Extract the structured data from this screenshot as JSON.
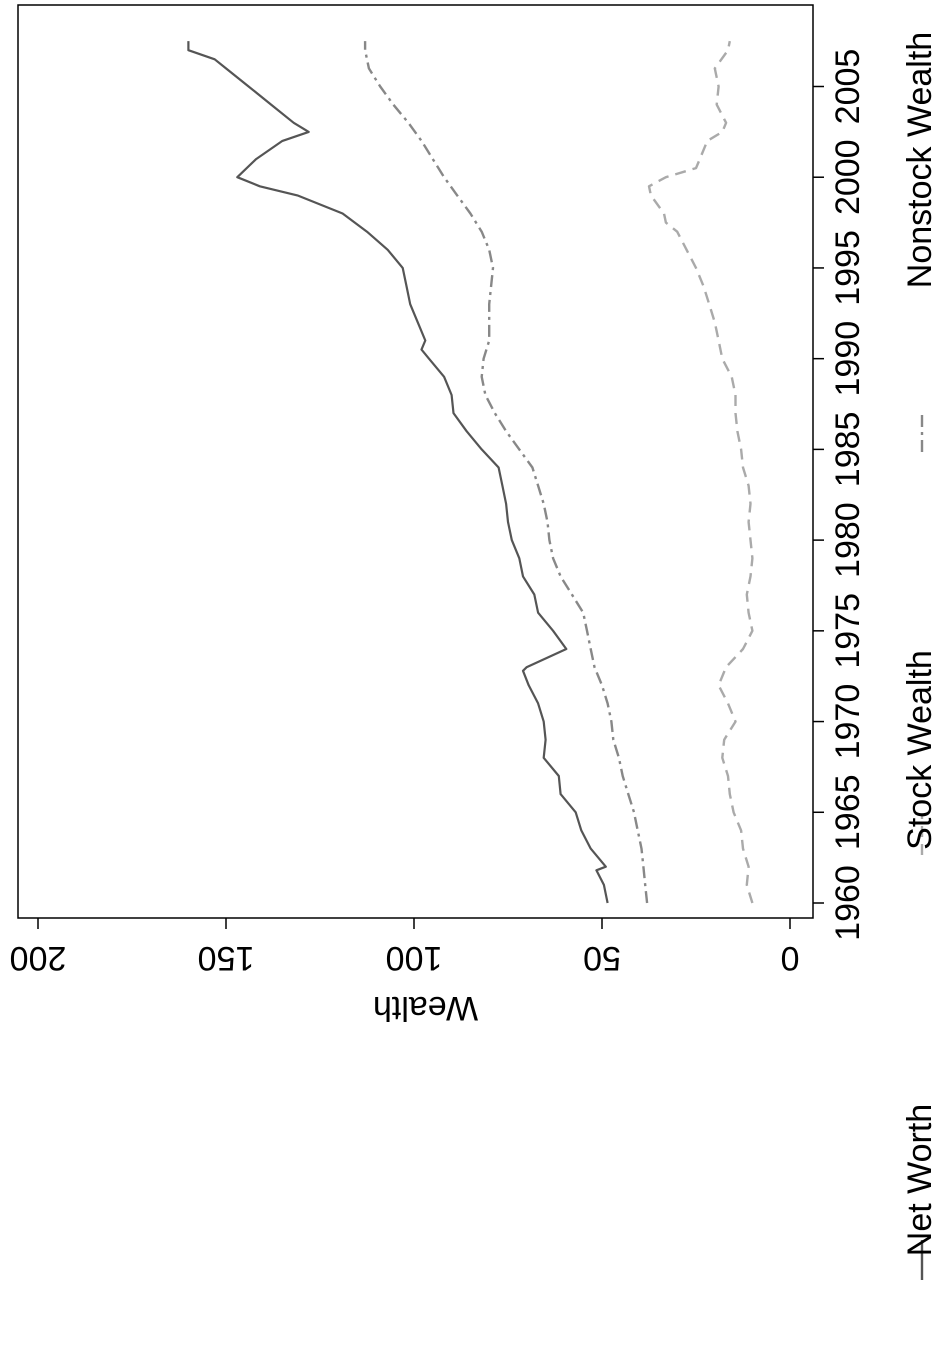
{
  "chart_data": {
    "type": "line",
    "orientation": "rotated-90-clockwise",
    "title": "",
    "xlabel": "",
    "ylabel": "Wealth",
    "xlim": [
      1959,
      2008.5
    ],
    "ylim": [
      0,
      200
    ],
    "x_ticks": [
      "1960",
      "1965",
      "1970",
      "1975",
      "1980",
      "1985",
      "1990",
      "1995",
      "2000",
      "2005"
    ],
    "y_ticks": [
      "0",
      "50",
      "100",
      "150",
      "200"
    ],
    "grid": false,
    "legend_position": "bottom",
    "series": [
      {
        "name": "Net Worth",
        "color": "#555555",
        "style": "solid",
        "points": [
          [
            1960,
            48.5
          ],
          [
            1961,
            49.5
          ],
          [
            1961.8,
            51.5
          ],
          [
            1962,
            49
          ],
          [
            1963,
            53
          ],
          [
            1964,
            55.5
          ],
          [
            1965,
            57
          ],
          [
            1966,
            61
          ],
          [
            1967,
            61.5
          ],
          [
            1968,
            65.5
          ],
          [
            1969,
            65
          ],
          [
            1970,
            65.5
          ],
          [
            1971,
            67
          ],
          [
            1972,
            69.5
          ],
          [
            1972.8,
            71
          ],
          [
            1973,
            70
          ],
          [
            1974,
            59.5
          ],
          [
            1975,
            63
          ],
          [
            1976,
            67
          ],
          [
            1977,
            68
          ],
          [
            1978,
            71
          ],
          [
            1979,
            72
          ],
          [
            1980,
            74
          ],
          [
            1981,
            75
          ],
          [
            1982,
            75.5
          ],
          [
            1983,
            76.5
          ],
          [
            1984,
            77.5
          ],
          [
            1985,
            82
          ],
          [
            1986,
            86
          ],
          [
            1987,
            89.5
          ],
          [
            1988,
            90
          ],
          [
            1989,
            92
          ],
          [
            1990,
            96
          ],
          [
            1990.5,
            98
          ],
          [
            1991,
            97
          ],
          [
            1992,
            99
          ],
          [
            1993,
            101
          ],
          [
            1994,
            102
          ],
          [
            1995,
            103
          ],
          [
            1996,
            107
          ],
          [
            1997,
            112.5
          ],
          [
            1998,
            119
          ],
          [
            1999,
            131
          ],
          [
            1999.5,
            141
          ],
          [
            2000,
            147
          ],
          [
            2001,
            142
          ],
          [
            2002,
            135
          ],
          [
            2002.5,
            128
          ],
          [
            2003,
            132
          ],
          [
            2004,
            138
          ],
          [
            2005,
            144
          ],
          [
            2006,
            150
          ],
          [
            2006.5,
            153
          ],
          [
            2007,
            160
          ],
          [
            2007.5,
            160
          ]
        ]
      },
      {
        "name": "Stock Wealth",
        "color": "#aaaaaa",
        "style": "dashed",
        "points": [
          [
            1960,
            10
          ],
          [
            1961,
            11.5
          ],
          [
            1962,
            11
          ],
          [
            1963,
            12.5
          ],
          [
            1964,
            13
          ],
          [
            1965,
            15
          ],
          [
            1966,
            16
          ],
          [
            1967,
            16.5
          ],
          [
            1968,
            18
          ],
          [
            1969,
            17.5
          ],
          [
            1970,
            14.5
          ],
          [
            1971,
            16.5
          ],
          [
            1972,
            19
          ],
          [
            1973,
            17
          ],
          [
            1974,
            12.5
          ],
          [
            1975,
            10
          ],
          [
            1976,
            11
          ],
          [
            1977,
            11.5
          ],
          [
            1978,
            10.5
          ],
          [
            1979,
            10
          ],
          [
            1980,
            10.5
          ],
          [
            1981,
            11
          ],
          [
            1982,
            10.5
          ],
          [
            1983,
            11
          ],
          [
            1984,
            12.5
          ],
          [
            1985,
            13
          ],
          [
            1986,
            14
          ],
          [
            1987,
            14.5
          ],
          [
            1988,
            14.5
          ],
          [
            1989,
            15.5
          ],
          [
            1990,
            18
          ],
          [
            1991,
            19
          ],
          [
            1992,
            20
          ],
          [
            1993,
            21.5
          ],
          [
            1994,
            23
          ],
          [
            1995,
            25
          ],
          [
            1996,
            27.5
          ],
          [
            1997,
            30
          ],
          [
            1997.5,
            33
          ],
          [
            1998,
            33.5
          ],
          [
            1999,
            37
          ],
          [
            1999.5,
            37.5
          ],
          [
            2000,
            33
          ],
          [
            2000.5,
            25
          ],
          [
            2001,
            24
          ],
          [
            2002,
            22
          ],
          [
            2002.5,
            18
          ],
          [
            2003,
            17
          ],
          [
            2004,
            19.5
          ],
          [
            2005,
            19
          ],
          [
            2006,
            20
          ],
          [
            2007,
            16.5
          ],
          [
            2007.5,
            16
          ]
        ]
      },
      {
        "name": "Nonstock Wealth",
        "color": "#888888",
        "style": "dash-dot",
        "points": [
          [
            1960,
            38
          ],
          [
            1961,
            38.5
          ],
          [
            1962,
            39
          ],
          [
            1963,
            39.5
          ],
          [
            1964,
            40.5
          ],
          [
            1965,
            41.5
          ],
          [
            1966,
            43
          ],
          [
            1967,
            44.5
          ],
          [
            1968,
            45.5
          ],
          [
            1969,
            47
          ],
          [
            1970,
            47.5
          ],
          [
            1971,
            48.5
          ],
          [
            1972,
            50
          ],
          [
            1973,
            52
          ],
          [
            1974,
            53
          ],
          [
            1975,
            54
          ],
          [
            1976,
            55
          ],
          [
            1977,
            58
          ],
          [
            1978,
            61
          ],
          [
            1979,
            63
          ],
          [
            1980,
            64
          ],
          [
            1981,
            64.5
          ],
          [
            1982,
            65.5
          ],
          [
            1983,
            67
          ],
          [
            1984,
            68.5
          ],
          [
            1985,
            72
          ],
          [
            1986,
            75.5
          ],
          [
            1987,
            78.5
          ],
          [
            1988,
            81
          ],
          [
            1989,
            82
          ],
          [
            1990,
            81.5
          ],
          [
            1991,
            80
          ],
          [
            1992,
            80
          ],
          [
            1993,
            80
          ],
          [
            1994,
            79.5
          ],
          [
            1995,
            79
          ],
          [
            1996,
            80
          ],
          [
            1997,
            82
          ],
          [
            1998,
            85
          ],
          [
            1999,
            88.5
          ],
          [
            2000,
            92
          ],
          [
            2001,
            95
          ],
          [
            2002,
            98
          ],
          [
            2003,
            101.5
          ],
          [
            2004,
            105.5
          ],
          [
            2005,
            109
          ],
          [
            2006,
            112
          ],
          [
            2007,
            113
          ],
          [
            2007.5,
            113
          ]
        ]
      }
    ]
  }
}
